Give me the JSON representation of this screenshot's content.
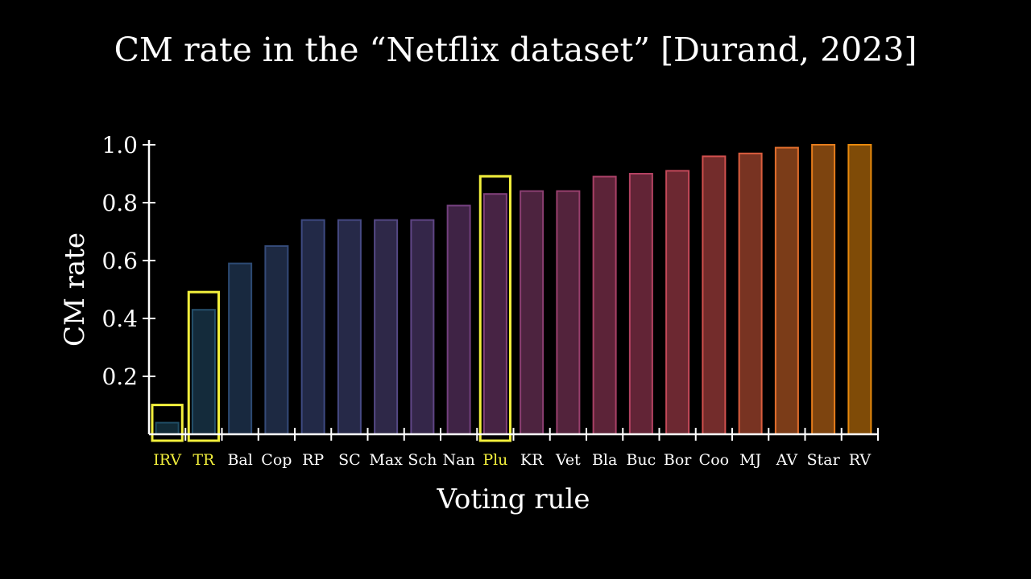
{
  "chart_data": {
    "type": "bar",
    "title": "CM rate in the “Netflix dataset” [Durand, 2023]",
    "xlabel": "Voting rule",
    "ylabel": "CM rate",
    "ylim": [
      0,
      1.0
    ],
    "yticks": [
      "0.2",
      "0.4",
      "0.6",
      "0.8",
      "1.0"
    ],
    "grid": false,
    "categories": [
      "IRV",
      "TR",
      "Bal",
      "Cop",
      "RP",
      "SC",
      "Max",
      "Sch",
      "Nan",
      "Plu",
      "KR",
      "Vet",
      "Bla",
      "Buc",
      "Bor",
      "Coo",
      "MJ",
      "AV",
      "Star",
      "RV"
    ],
    "values": [
      0.04,
      0.43,
      0.59,
      0.65,
      0.74,
      0.74,
      0.74,
      0.74,
      0.79,
      0.83,
      0.84,
      0.84,
      0.89,
      0.9,
      0.91,
      0.96,
      0.97,
      0.99,
      1.0,
      1.0
    ],
    "highlighted": [
      "IRV",
      "TR",
      "Plu"
    ],
    "colors": [
      "#1f4d63",
      "#254f6b",
      "#2c4a73",
      "#344a78",
      "#3e4a82",
      "#464a84",
      "#544884",
      "#5f4585",
      "#73407e",
      "#81407b",
      "#8c3f72",
      "#983f6d",
      "#a84066",
      "#b34262",
      "#c4495a",
      "#d1504e",
      "#da5d3e",
      "#e06d2c",
      "#e47c1c",
      "#e8890c"
    ],
    "highlight_color": "#f2ef3c",
    "label_color": "#ffffff"
  }
}
